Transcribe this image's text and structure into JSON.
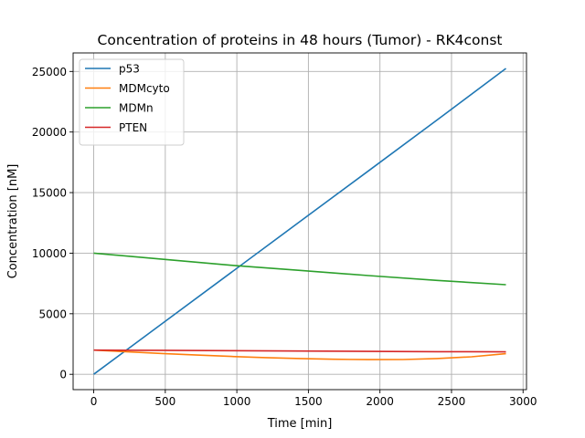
{
  "chart_data": {
    "type": "line",
    "title": "Concentration of proteins in 48 hours (Tumor) - RK4const",
    "xlabel": "Time [min]",
    "ylabel": "Concentration [nM]",
    "xlim": [
      -144,
      3024
    ],
    "ylim": [
      -1265,
      26530
    ],
    "xticks": [
      0,
      500,
      1000,
      1500,
      2000,
      2500,
      3000
    ],
    "yticks": [
      0,
      5000,
      10000,
      15000,
      20000,
      25000
    ],
    "grid": true,
    "legend_position": "upper-left",
    "series": [
      {
        "name": "p53",
        "color": "#1f77b4",
        "x": [
          0,
          480,
          960,
          1440,
          1920,
          2400,
          2880
        ],
        "y": [
          0,
          4200,
          8400,
          12600,
          16800,
          21000,
          25250
        ]
      },
      {
        "name": "MDMcyto",
        "color": "#ff7f0e",
        "x": [
          0,
          240,
          480,
          720,
          960,
          1200,
          1440,
          1680,
          1920,
          2160,
          2400,
          2640,
          2880
        ],
        "y": [
          2000,
          1850,
          1720,
          1590,
          1480,
          1380,
          1300,
          1240,
          1210,
          1220,
          1300,
          1450,
          1700
        ]
      },
      {
        "name": "MDMn",
        "color": "#2ca02c",
        "x": [
          0,
          480,
          960,
          1440,
          1920,
          2400,
          2880
        ],
        "y": [
          10000,
          9500,
          9000,
          8580,
          8150,
          7750,
          7400
        ]
      },
      {
        "name": "PTEN",
        "color": "#d62728",
        "x": [
          0,
          480,
          960,
          1440,
          1920,
          2400,
          2880
        ],
        "y": [
          2000,
          1980,
          1950,
          1920,
          1890,
          1870,
          1850
        ]
      }
    ]
  }
}
